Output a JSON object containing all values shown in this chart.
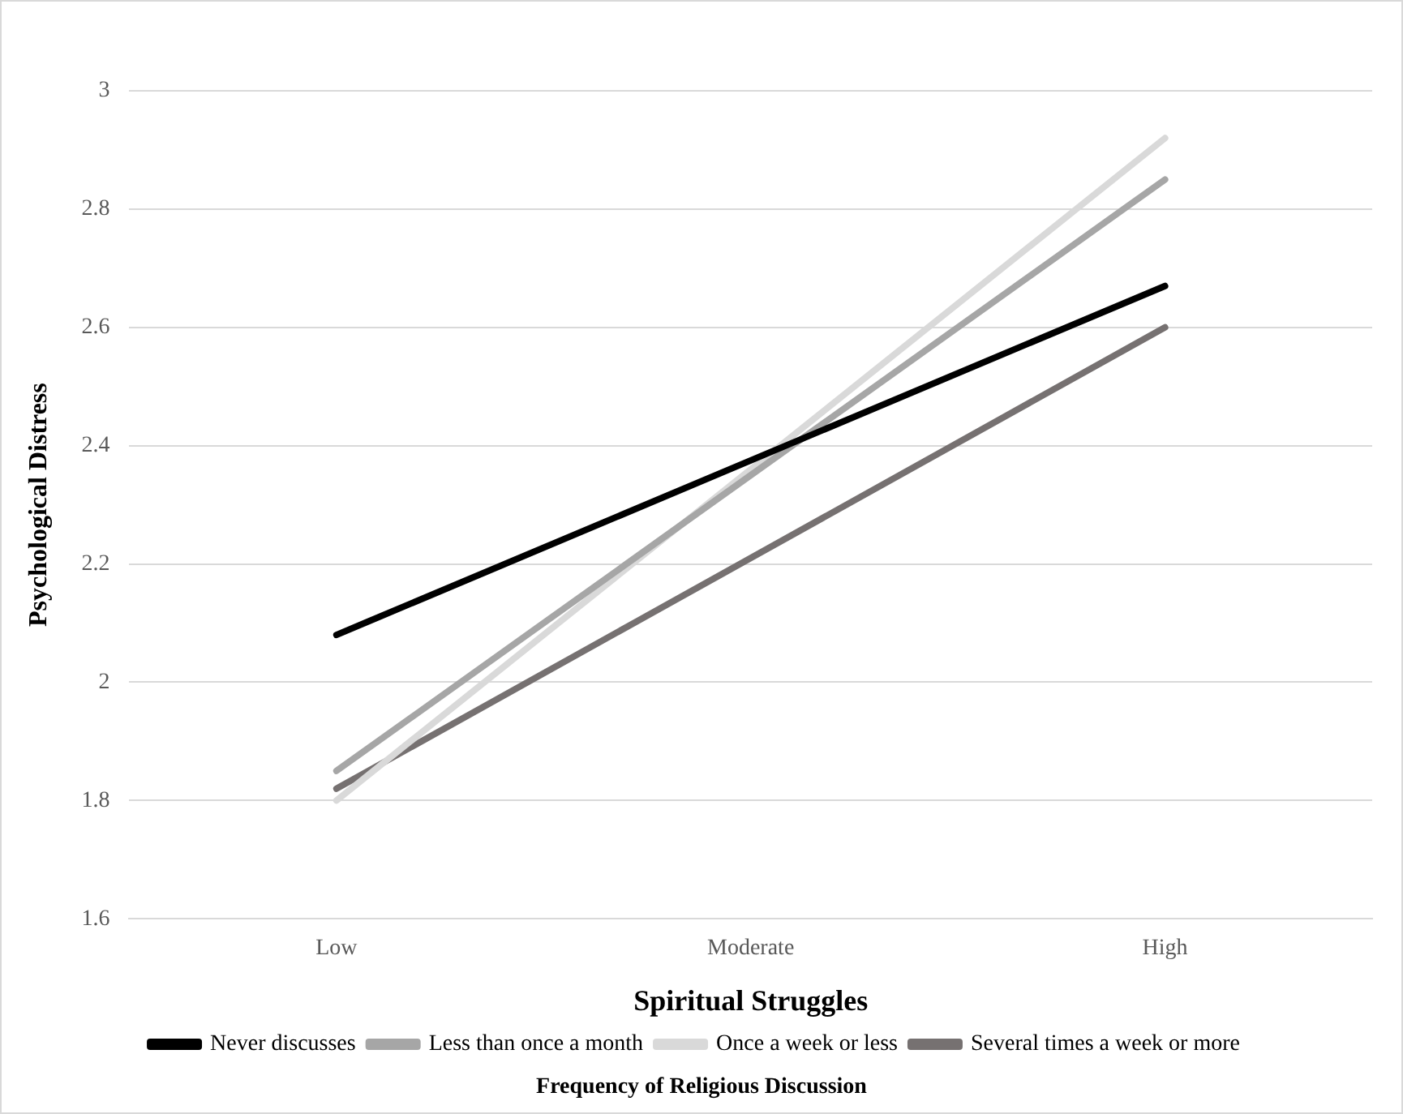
{
  "chart_data": {
    "type": "line",
    "xlabel": "Spiritual Struggles",
    "ylabel": "Psychological Distress",
    "legend_title": "Frequency of Religious Discussion",
    "categories": [
      "Low",
      "Moderate",
      "High"
    ],
    "series": [
      {
        "name": "Never discusses",
        "color": "#000000",
        "values": [
          2.08,
          2.375,
          2.67
        ]
      },
      {
        "name": "Less than once a month",
        "color": "#a6a6a6",
        "values": [
          1.85,
          2.35,
          2.85
        ]
      },
      {
        "name": "Once a week or less",
        "color": "#d9d9d9",
        "values": [
          1.8,
          2.36,
          2.92
        ]
      },
      {
        "name": "Several times a week or more",
        "color": "#767171",
        "values": [
          1.82,
          2.21,
          2.6
        ]
      }
    ],
    "ylim": [
      1.6,
      3
    ],
    "yticks": [
      1.6,
      1.8,
      2,
      2.2,
      2.4,
      2.6,
      2.8,
      3
    ],
    "grid": "y",
    "legend": "bottom",
    "marker": "none",
    "line_style": "solid"
  }
}
